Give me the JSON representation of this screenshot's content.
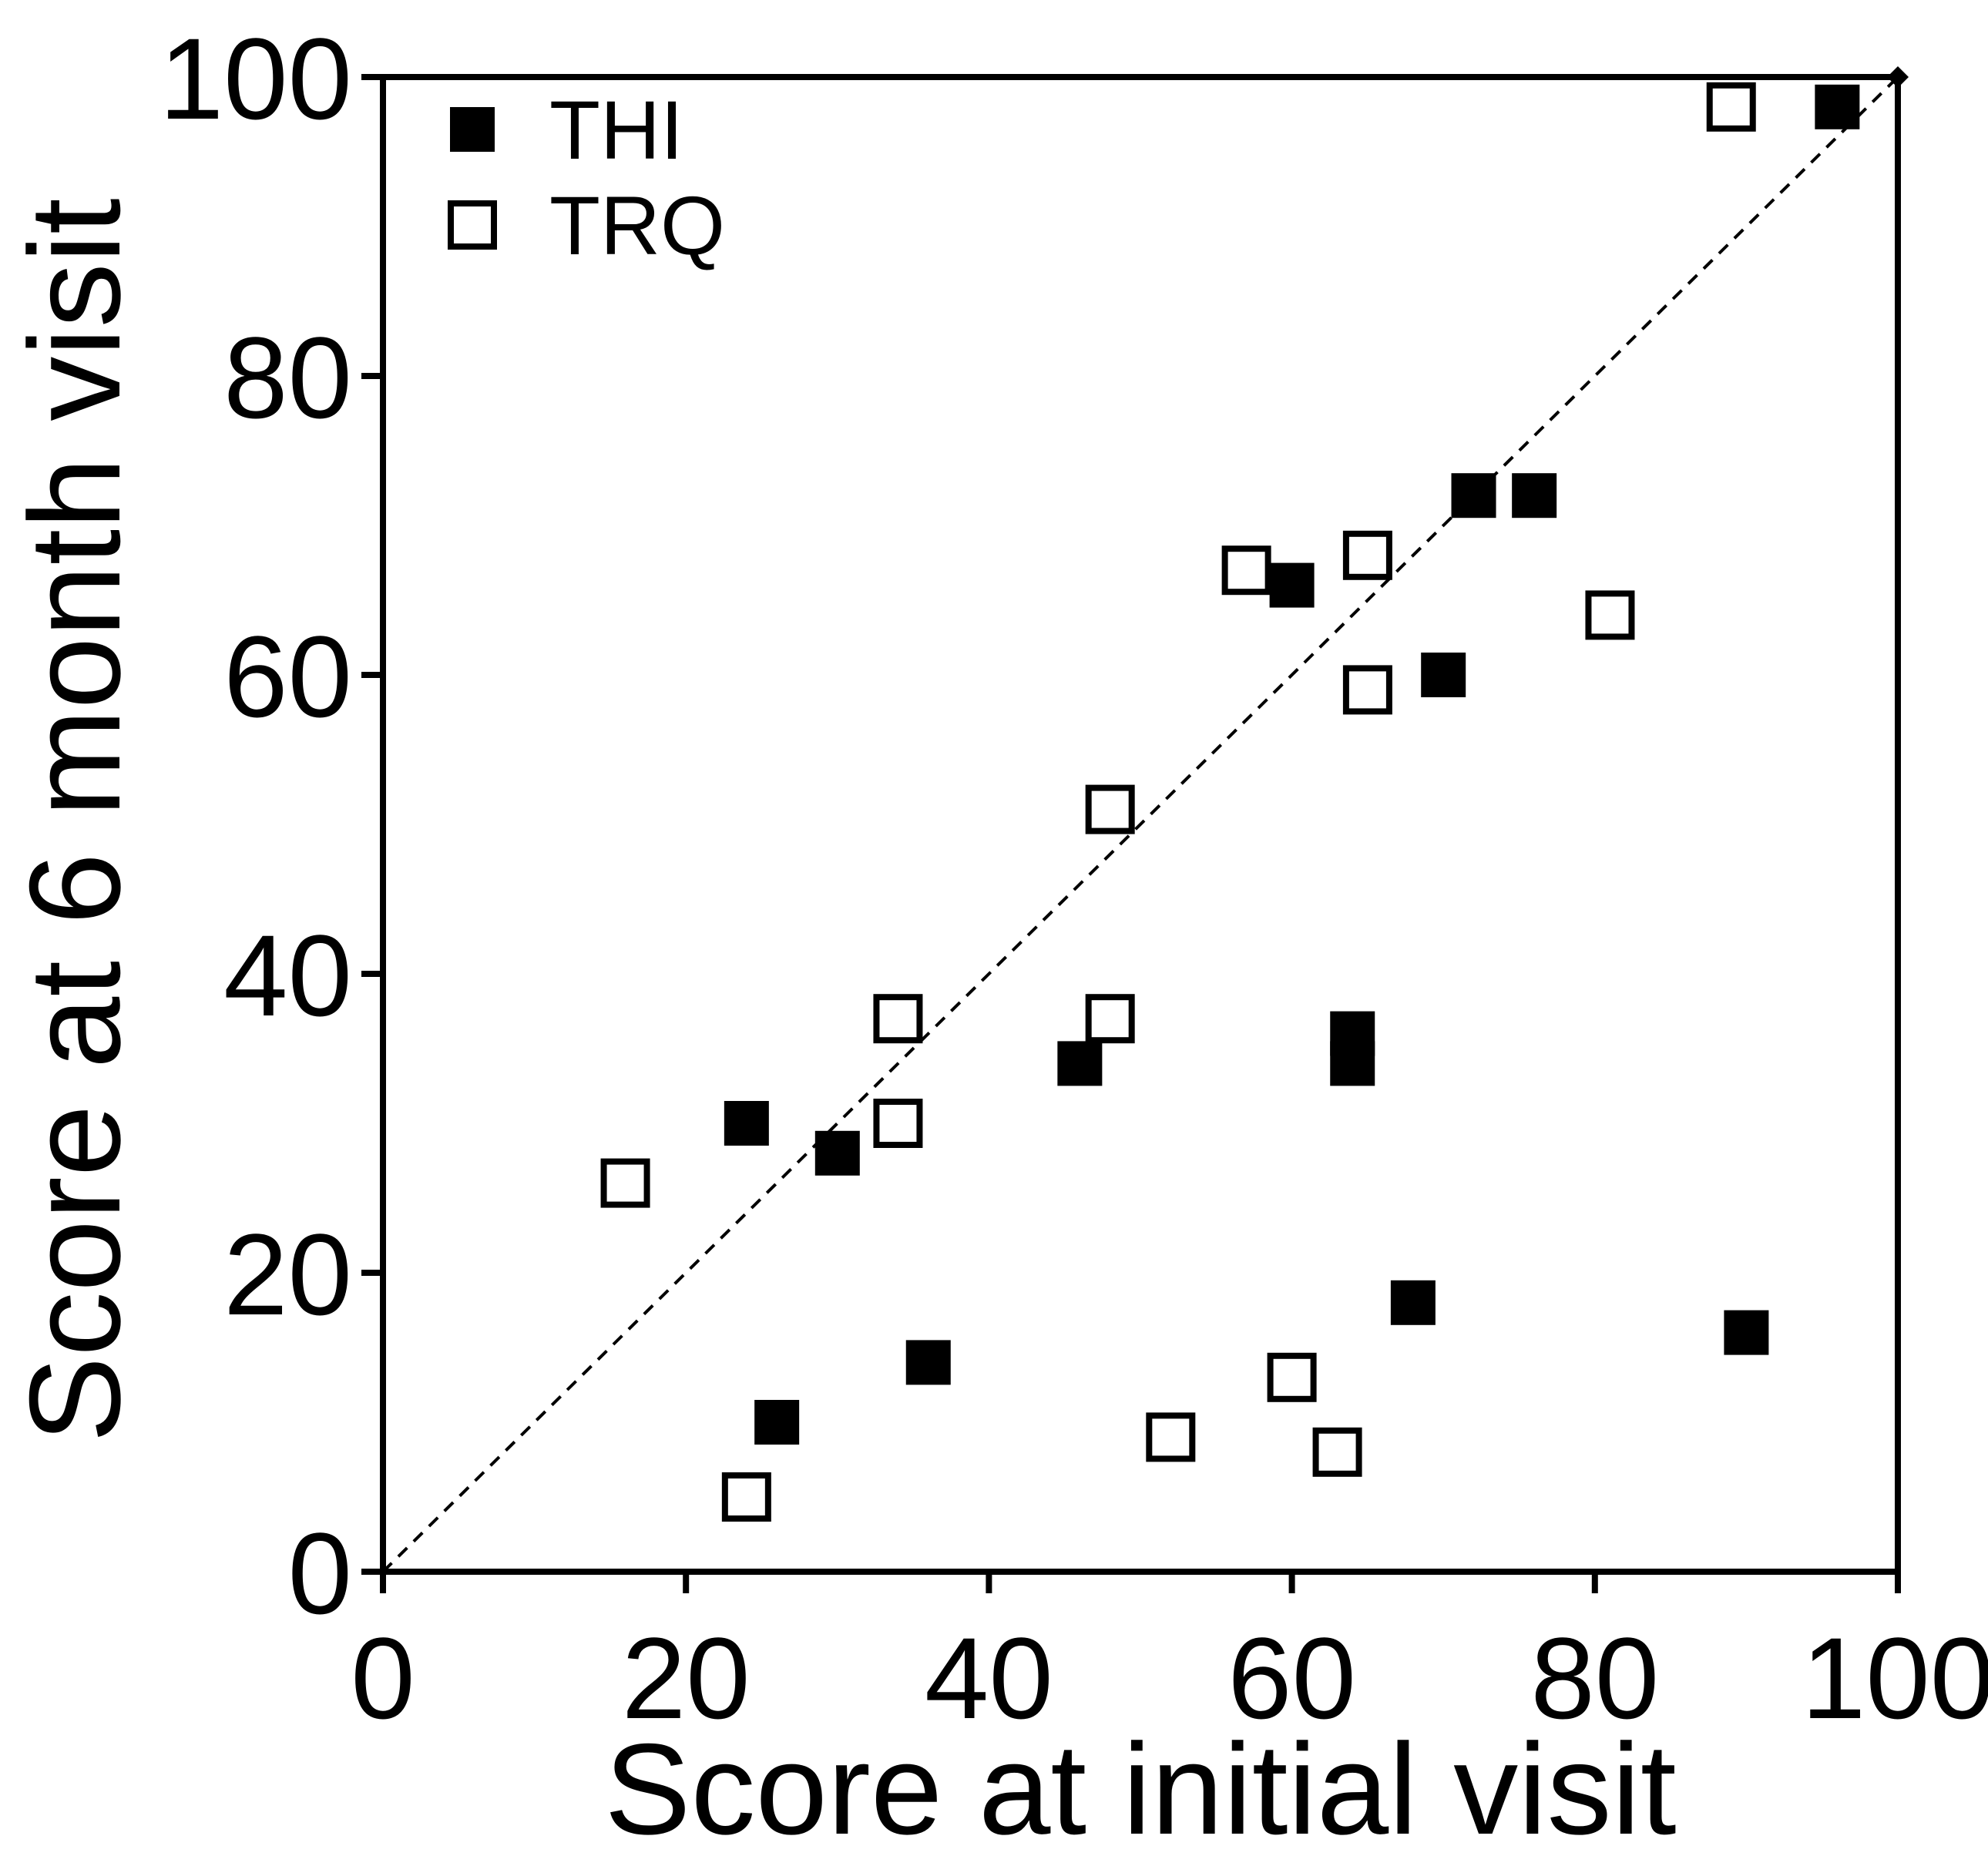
{
  "chart_data": {
    "type": "scatter",
    "xlabel": "Score at initial visit",
    "ylabel": "Score at 6 month visit",
    "xlim": [
      0,
      100
    ],
    "ylim": [
      0,
      100
    ],
    "xticks": [
      "0",
      "20",
      "40",
      "60",
      "80",
      "100"
    ],
    "yticks": [
      "0",
      "20",
      "40",
      "60",
      "80",
      "100"
    ],
    "grid": false,
    "legend_position": "top-left",
    "reference_line": "identity (y = x), dashed",
    "series": [
      {
        "name": "THI",
        "marker": "filled-square",
        "color": "#000000",
        "points": [
          [
            96,
            98
          ],
          [
            72,
            72
          ],
          [
            76,
            72
          ],
          [
            60,
            66
          ],
          [
            70,
            60
          ],
          [
            64,
            36
          ],
          [
            64,
            34
          ],
          [
            46,
            34
          ],
          [
            24,
            30
          ],
          [
            30,
            28
          ],
          [
            68,
            18
          ],
          [
            90,
            16
          ],
          [
            36,
            14
          ],
          [
            26,
            10
          ]
        ]
      },
      {
        "name": "TRQ",
        "marker": "open-square",
        "color": "#000000",
        "points": [
          [
            89,
            98
          ],
          [
            65,
            68
          ],
          [
            57,
            67
          ],
          [
            81,
            64
          ],
          [
            65,
            59
          ],
          [
            48,
            51
          ],
          [
            34,
            37
          ],
          [
            48,
            37
          ],
          [
            34,
            30
          ],
          [
            16,
            26
          ],
          [
            60,
            13
          ],
          [
            52,
            9
          ],
          [
            63,
            8
          ],
          [
            24,
            5
          ]
        ]
      }
    ]
  }
}
